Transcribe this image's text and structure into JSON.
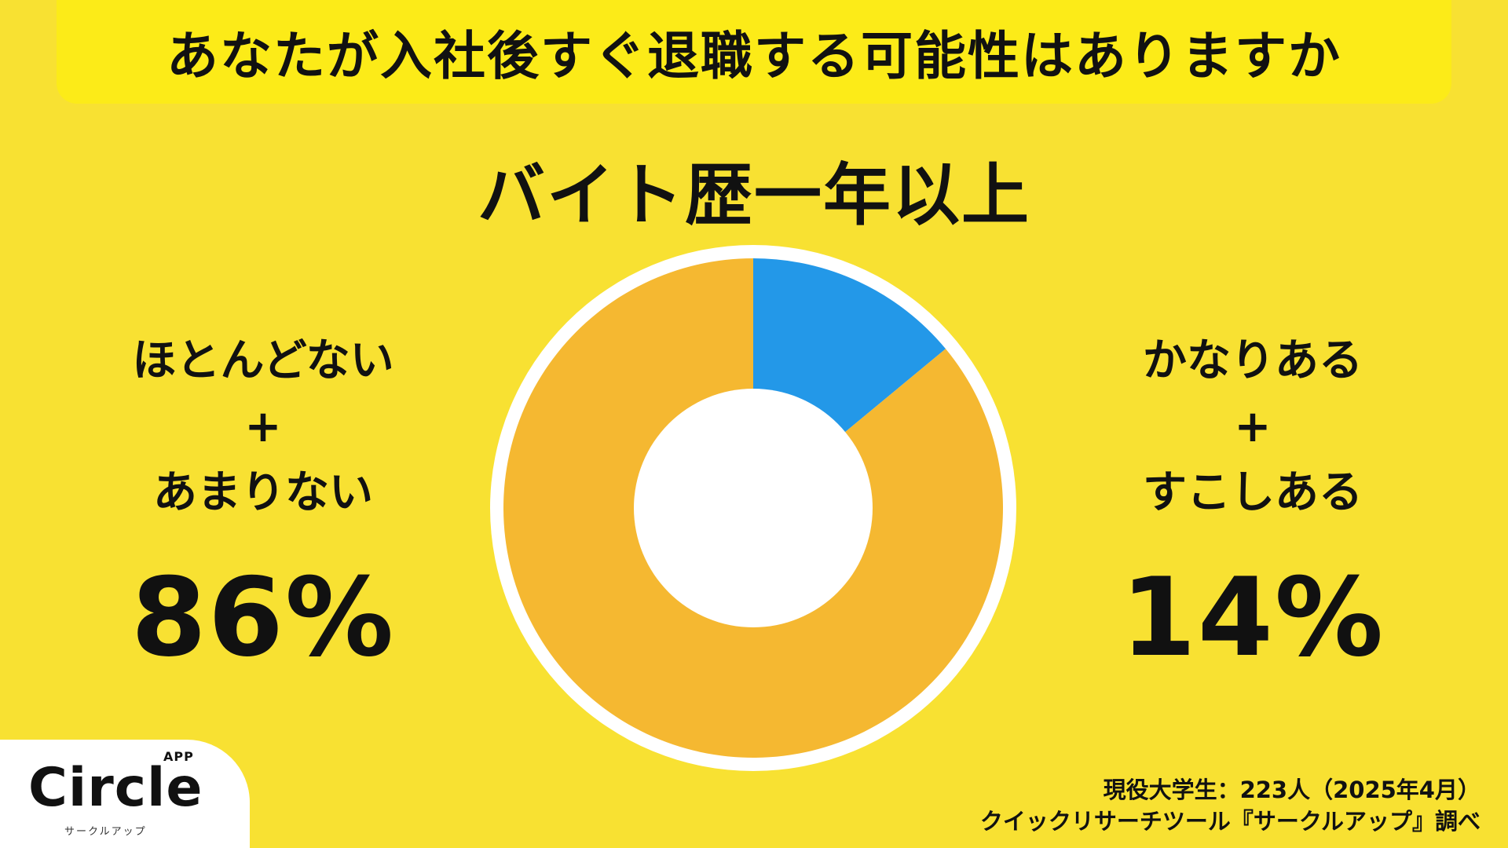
{
  "colors": {
    "background": "#F8E132",
    "title_box": "#FCEB18",
    "low_segment": "#F5B831",
    "high_segment": "#2398E8",
    "ring_border": "#FFFFFF"
  },
  "header": {
    "title": "あなたが入社後すぐ退職する可能性はありますか"
  },
  "subtitle": "バイト歴一年以上",
  "left_group": {
    "line1": "ほとんどない",
    "plus": "+",
    "line2": "あまりない",
    "value": "86%"
  },
  "right_group": {
    "line1": "かなりある",
    "plus": "+",
    "line2": "すこしある",
    "value": "14%"
  },
  "logo": {
    "name": "Circle",
    "badge": "APP",
    "tagline": "サークルアップ"
  },
  "source": {
    "line1": "現役大学生：223人（2025年4月）",
    "line2": "クイックリサーチツール『サークルアップ』調べ"
  },
  "chart_data": {
    "type": "pie",
    "variant": "donut",
    "categories": [
      "かなりある + すこしある",
      "ほとんどない + あまりない"
    ],
    "values": [
      14,
      86
    ],
    "unit": "%",
    "start": "12 o'clock",
    "direction": "clockwise",
    "legend": "none"
  }
}
